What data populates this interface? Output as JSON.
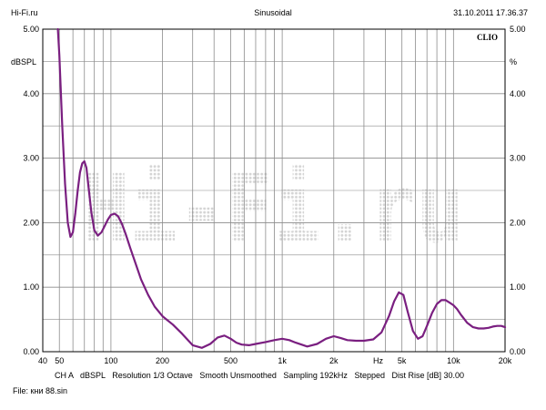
{
  "header": {
    "site": "Hi-Fi.ru",
    "mode": "Sinusoidal",
    "datetime": "31.10.2011 17.36.37"
  },
  "watermark": "Hi-Fi.ru",
  "brand": "CLIO",
  "footer": {
    "channel": "CH A",
    "unit": "dBSPL",
    "resolution": "Resolution 1/3 Octave",
    "smoothing": "Smooth Unsmoothed",
    "sampling": "Sampling 192kHz",
    "stepped": "Stepped",
    "dist_rise": "Dist Rise [dB] 30.00"
  },
  "file": {
    "label": "File:",
    "name": "кни 88.sin"
  },
  "colors": {
    "curve": "#7a1f80",
    "grid": "#8c8c8c",
    "frame": "#000000",
    "watermark": "#d4d4d4"
  },
  "chart_data": {
    "type": "line",
    "title": "",
    "xscale": "log",
    "xlim": [
      40,
      20000
    ],
    "ylim_left": [
      0,
      5
    ],
    "ylim_right": [
      0,
      5
    ],
    "ylabel_left": "dBSPL",
    "ylabel_right": "%",
    "xunit_label": "Hz",
    "grid": true,
    "y_ticks_left": [
      "5.00",
      "4.00",
      "3.00",
      "2.00",
      "1.00",
      "0.00"
    ],
    "y_ticks_right": [
      "5.00",
      "4.00",
      "3.00",
      "2.00",
      "1.00",
      "0.00"
    ],
    "x_tick_labels": [
      {
        "f": 40,
        "label": "40"
      },
      {
        "f": 50,
        "label": "50"
      },
      {
        "f": 100,
        "label": "100"
      },
      {
        "f": 200,
        "label": "200"
      },
      {
        "f": 500,
        "label": "500"
      },
      {
        "f": 1000,
        "label": "1k"
      },
      {
        "f": 2000,
        "label": "2k"
      },
      {
        "f": 5000,
        "label": "5k"
      },
      {
        "f": 10000,
        "label": "10k"
      },
      {
        "f": 20000,
        "label": "20k"
      }
    ],
    "series": [
      {
        "x": [
          49,
          50,
          52,
          54,
          56,
          58,
          60,
          62,
          64,
          66,
          68,
          70,
          72,
          74,
          77,
          80,
          84,
          88,
          92,
          96,
          100,
          105,
          110,
          116,
          122,
          130,
          140,
          150,
          165,
          180,
          200,
          230,
          260,
          300,
          340,
          380,
          420,
          460,
          500,
          540,
          580,
          640,
          700,
          800,
          900,
          1000,
          1100,
          1200,
          1400,
          1600,
          1800,
          2000,
          2200,
          2400,
          2700,
          3000,
          3400,
          3800,
          4200,
          4500,
          4800,
          5100,
          5400,
          5800,
          6200,
          6600,
          7000,
          7500,
          8000,
          8500,
          9000,
          9500,
          10000,
          10500,
          11000,
          12000,
          13000,
          14000,
          15000,
          16000,
          17000,
          18000,
          19000,
          20000
        ],
        "y": [
          5.0,
          4.6,
          3.5,
          2.6,
          2.0,
          1.78,
          1.85,
          2.15,
          2.5,
          2.78,
          2.92,
          2.95,
          2.85,
          2.55,
          2.15,
          1.88,
          1.8,
          1.85,
          1.95,
          2.05,
          2.12,
          2.14,
          2.1,
          1.98,
          1.82,
          1.6,
          1.35,
          1.12,
          0.88,
          0.7,
          0.55,
          0.42,
          0.28,
          0.1,
          0.06,
          0.12,
          0.22,
          0.25,
          0.2,
          0.14,
          0.11,
          0.1,
          0.12,
          0.15,
          0.18,
          0.2,
          0.18,
          0.14,
          0.08,
          0.12,
          0.2,
          0.24,
          0.21,
          0.18,
          0.17,
          0.17,
          0.19,
          0.3,
          0.55,
          0.78,
          0.92,
          0.88,
          0.62,
          0.32,
          0.2,
          0.24,
          0.4,
          0.6,
          0.74,
          0.8,
          0.8,
          0.76,
          0.72,
          0.66,
          0.58,
          0.45,
          0.38,
          0.36,
          0.36,
          0.37,
          0.39,
          0.4,
          0.4,
          0.38
        ]
      }
    ]
  }
}
